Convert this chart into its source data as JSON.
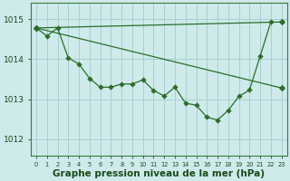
{
  "background_color": "#ceeaea",
  "grid_color": "#a8d0d0",
  "line_color": "#2a6e2a",
  "xlabel": "Graphe pression niveau de la mer (hPa)",
  "xlabel_fontsize": 7.5,
  "ylabel_ticks": [
    1012,
    1013,
    1014,
    1015
  ],
  "ytick_fontsize": 6.5,
  "xtick_fontsize": 4.8,
  "xlim": [
    -0.5,
    23.5
  ],
  "ylim": [
    1011.6,
    1015.4
  ],
  "line_straight_decline": [
    [
      0,
      1014.78
    ],
    [
      23,
      1013.28
    ]
  ],
  "line_straight_rise": [
    [
      0,
      1014.78
    ],
    [
      23,
      1014.93
    ]
  ],
  "curve_x": [
    0,
    1,
    2,
    3,
    4,
    5,
    6,
    7,
    8,
    9,
    10,
    11,
    12,
    13,
    14,
    15,
    16,
    17,
    18,
    19,
    20,
    21,
    22
  ],
  "curve_y": [
    1014.78,
    1014.58,
    1014.78,
    1014.03,
    1013.88,
    1013.52,
    1013.3,
    1013.3,
    1013.38,
    1013.38,
    1013.48,
    1013.22,
    1013.08,
    1013.3,
    1012.9,
    1012.85,
    1012.55,
    1012.48,
    1012.72,
    1013.07,
    1013.23,
    1014.08,
    1014.93
  ],
  "xtick_labels": [
    "0",
    "1",
    "2",
    "3",
    "4",
    "5",
    "6",
    "7",
    "8",
    "9",
    "10",
    "11",
    "12",
    "13",
    "14",
    "15",
    "16",
    "17",
    "18",
    "19",
    "20",
    "21",
    "22",
    "23"
  ]
}
